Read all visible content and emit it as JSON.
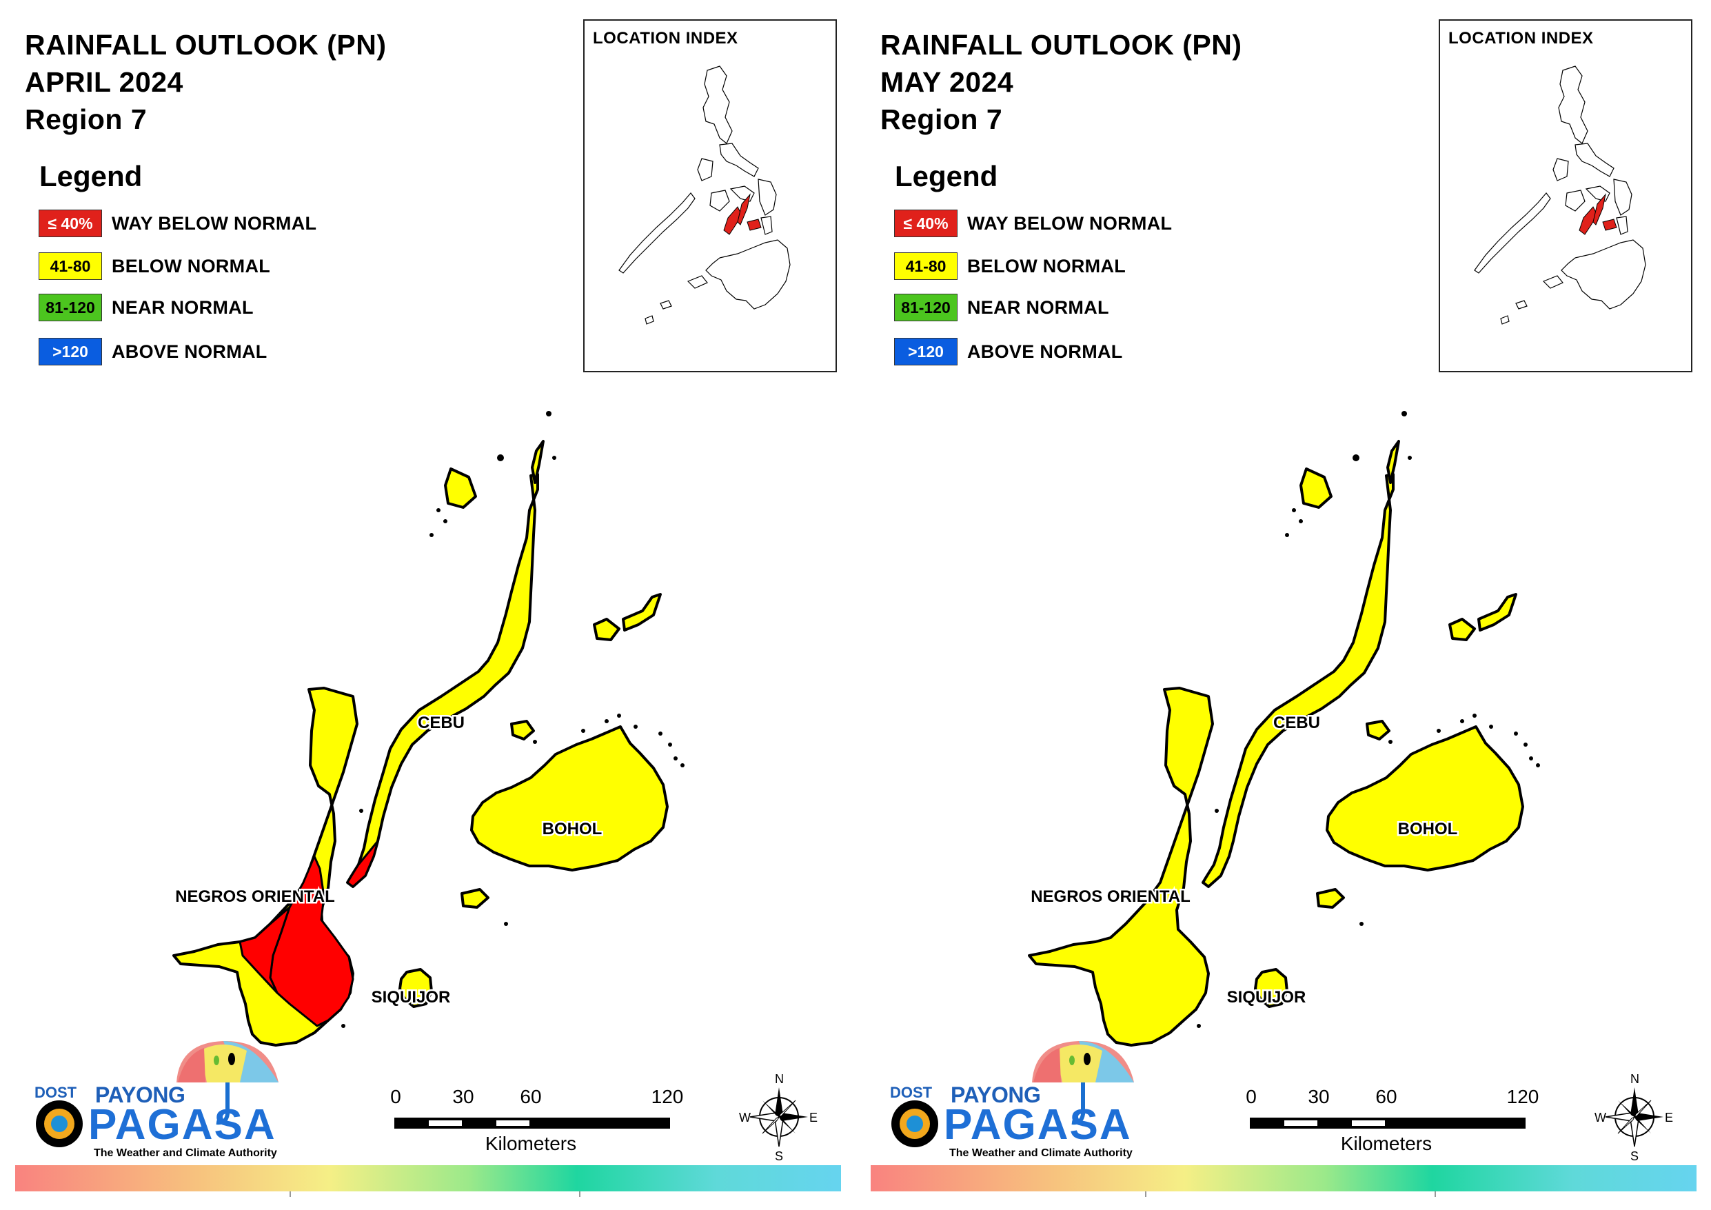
{
  "panels": [
    {
      "title": {
        "line1": "RAINFALL OUTLOOK (PN)",
        "line2": "APRIL 2024",
        "line3": "Region 7"
      },
      "legend": {
        "title": "Legend",
        "items": [
          {
            "range": "≤ 40%",
            "label": "WAY BELOW NORMAL",
            "color": "#e0211b",
            "text_color": "#ffffff"
          },
          {
            "range": "41-80",
            "label": "BELOW NORMAL",
            "color": "#ffff00",
            "text_color": "#000000"
          },
          {
            "range": "81-120",
            "label": "NEAR NORMAL",
            "color": "#4cc51f",
            "text_color": "#000000"
          },
          {
            "range": ">120",
            "label": "ABOVE NORMAL",
            "color": "#0a5de0",
            "text_color": "#ffffff"
          }
        ]
      },
      "location_index": {
        "label": "LOCATION INDEX"
      },
      "map_labels": {
        "cebu": "CEBU",
        "bohol": "BOHOL",
        "negros": "NEGROS ORIENTAL",
        "siquijor": "SIQUIJOR"
      },
      "negros_oriental_has_way_below_normal": true,
      "scalebar": {
        "ticks": [
          "0",
          "30",
          "60",
          "120"
        ],
        "unit": "Kilometers"
      },
      "north_arrow": {
        "n": "N",
        "s": "S",
        "e": "E",
        "w": "W"
      },
      "logo": {
        "dost": "DOST",
        "payong": "PAYONG",
        "pagasa": "PAGASA",
        "tagline": "The Weather and Climate Authority"
      }
    },
    {
      "title": {
        "line1": "RAINFALL OUTLOOK (PN)",
        "line2": "MAY 2024",
        "line3": "Region 7"
      },
      "legend": {
        "title": "Legend",
        "items": [
          {
            "range": "≤ 40%",
            "label": "WAY BELOW NORMAL",
            "color": "#e0211b",
            "text_color": "#ffffff"
          },
          {
            "range": "41-80",
            "label": "BELOW NORMAL",
            "color": "#ffff00",
            "text_color": "#000000"
          },
          {
            "range": "81-120",
            "label": "NEAR NORMAL",
            "color": "#4cc51f",
            "text_color": "#000000"
          },
          {
            "range": ">120",
            "label": "ABOVE NORMAL",
            "color": "#0a5de0",
            "text_color": "#ffffff"
          }
        ]
      },
      "location_index": {
        "label": "LOCATION INDEX"
      },
      "map_labels": {
        "cebu": "CEBU",
        "bohol": "BOHOL",
        "negros": "NEGROS ORIENTAL",
        "siquijor": "SIQUIJOR"
      },
      "negros_oriental_has_way_below_normal": false,
      "scalebar": {
        "ticks": [
          "0",
          "30",
          "60",
          "120"
        ],
        "unit": "Kilometers"
      },
      "north_arrow": {
        "n": "N",
        "s": "S",
        "e": "E",
        "w": "W"
      },
      "logo": {
        "dost": "DOST",
        "payong": "PAYONG",
        "pagasa": "PAGASA",
        "tagline": "The Weather and Climate Authority"
      }
    }
  ],
  "colors": {
    "below_normal": "#ffff00",
    "way_below_normal": "#ff0000",
    "outline": "#000000"
  }
}
